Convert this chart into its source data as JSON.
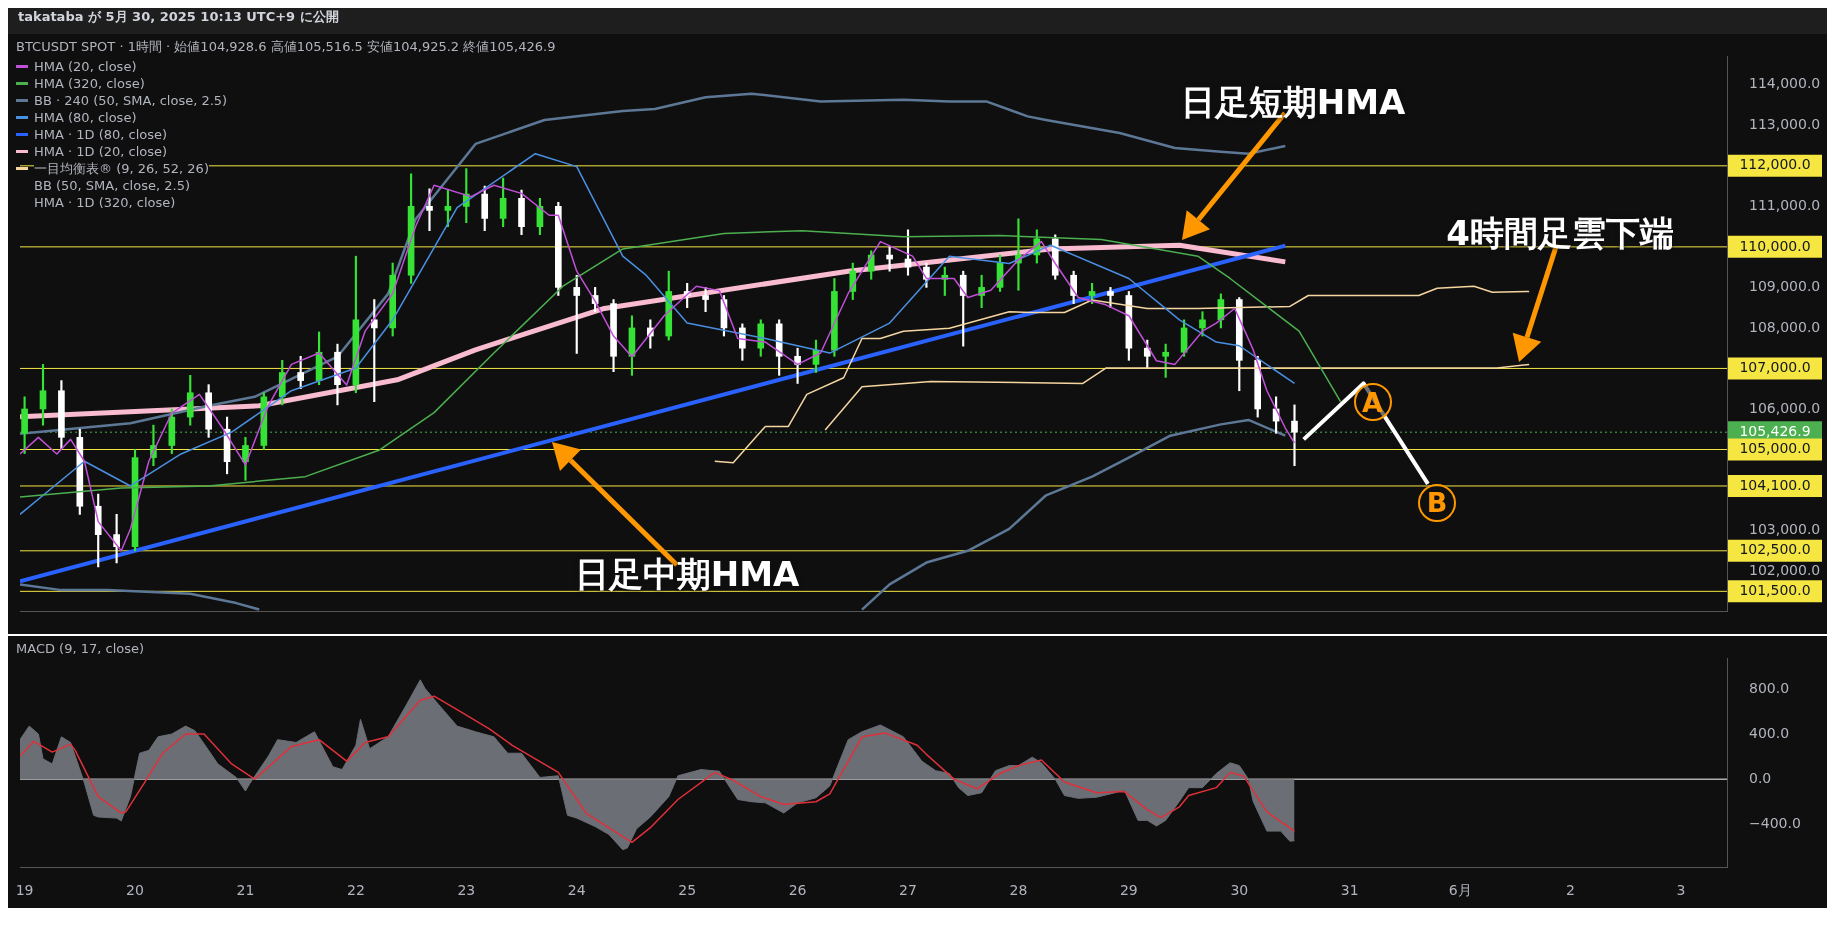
{
  "chart_data": [
    {
      "type": "candlestick",
      "title": "takataba が 5月 30, 2025 10:13 UTC+9 に公開",
      "subtitle": "BTCUSDT SPOT · 1時間 · 始値104,928.6 高値105,516.5 安値104,925.2 終値105,426.9",
      "x": [
        "2025-05-19T00:00",
        "2025-05-19T04:00",
        "2025-05-19T08:00",
        "2025-05-19T12:00",
        "2025-05-19T16:00",
        "2025-05-19T20:00",
        "2025-05-20T00:00",
        "2025-05-20T04:00",
        "2025-05-20T08:00",
        "2025-05-20T12:00",
        "2025-05-20T16:00",
        "2025-05-20T20:00",
        "2025-05-21T00:00",
        "2025-05-21T04:00",
        "2025-05-21T08:00",
        "2025-05-21T12:00",
        "2025-05-21T16:00",
        "2025-05-21T20:00",
        "2025-05-22T00:00",
        "2025-05-22T04:00",
        "2025-05-22T08:00",
        "2025-05-22T12:00",
        "2025-05-22T16:00",
        "2025-05-22T20:00",
        "2025-05-23T00:00",
        "2025-05-23T04:00",
        "2025-05-23T08:00",
        "2025-05-23T12:00",
        "2025-05-23T16:00",
        "2025-05-23T20:00",
        "2025-05-24T00:00",
        "2025-05-24T04:00",
        "2025-05-24T08:00",
        "2025-05-24T12:00",
        "2025-05-24T16:00",
        "2025-05-24T20:00",
        "2025-05-25T00:00",
        "2025-05-25T04:00",
        "2025-05-25T08:00",
        "2025-05-25T12:00",
        "2025-05-25T16:00",
        "2025-05-25T20:00",
        "2025-05-26T00:00",
        "2025-05-26T04:00",
        "2025-05-26T08:00",
        "2025-05-26T12:00",
        "2025-05-26T16:00",
        "2025-05-26T20:00",
        "2025-05-27T00:00",
        "2025-05-27T04:00",
        "2025-05-27T08:00",
        "2025-05-27T12:00",
        "2025-05-27T16:00",
        "2025-05-27T20:00",
        "2025-05-28T00:00",
        "2025-05-28T04:00",
        "2025-05-28T08:00",
        "2025-05-28T12:00",
        "2025-05-28T16:00",
        "2025-05-28T20:00",
        "2025-05-29T00:00",
        "2025-05-29T04:00",
        "2025-05-29T08:00",
        "2025-05-29T12:00",
        "2025-05-29T16:00",
        "2025-05-29T20:00",
        "2025-05-30T00:00",
        "2025-05-30T04:00",
        "2025-05-30T08:00",
        "2025-05-30T12:00"
      ],
      "ohlc": [
        [
          105400,
          106300,
          104900,
          106000
        ],
        [
          106000,
          107100,
          105600,
          106450
        ],
        [
          106450,
          106700,
          105000,
          105300
        ],
        [
          105300,
          105500,
          103400,
          103600
        ],
        [
          103600,
          103900,
          102100,
          102900
        ],
        [
          102900,
          103400,
          102200,
          102600
        ],
        [
          102600,
          105000,
          102500,
          104800
        ],
        [
          104800,
          105600,
          104600,
          105100
        ],
        [
          105100,
          106000,
          104900,
          105800
        ],
        [
          105800,
          106830,
          105600,
          106400
        ],
        [
          106400,
          106600,
          105300,
          105500
        ],
        [
          105500,
          105800,
          104400,
          104700
        ],
        [
          104700,
          105300,
          104240,
          105100
        ],
        [
          105100,
          106400,
          105000,
          106300
        ],
        [
          106300,
          107200,
          106100,
          106900
        ],
        [
          106900,
          107300,
          106500,
          106700
        ],
        [
          106700,
          107900,
          106600,
          107400
        ],
        [
          107400,
          107600,
          106100,
          106600
        ],
        [
          106600,
          109770,
          106400,
          108200
        ],
        [
          108200,
          108700,
          106180,
          108000
        ],
        [
          108000,
          109600,
          107800,
          109300
        ],
        [
          109300,
          111800,
          109100,
          111000
        ],
        [
          111000,
          111430,
          110400,
          110900
        ],
        [
          110900,
          111400,
          110500,
          111000
        ],
        [
          111000,
          111930,
          110600,
          111300
        ],
        [
          111300,
          111500,
          110400,
          110700
        ],
        [
          110700,
          111700,
          110500,
          111200
        ],
        [
          111200,
          111400,
          110300,
          110500
        ],
        [
          110500,
          111200,
          110300,
          111000
        ],
        [
          111000,
          111100,
          108800,
          109000
        ],
        [
          109000,
          109300,
          107370,
          108800
        ],
        [
          108800,
          109000,
          108400,
          108600
        ],
        [
          108600,
          108700,
          106920,
          107300
        ],
        [
          107300,
          108300,
          106830,
          108000
        ],
        [
          108000,
          108200,
          107500,
          107800
        ],
        [
          107800,
          109400,
          107700,
          108900
        ],
        [
          108900,
          109100,
          108500,
          108800
        ],
        [
          108800,
          109000,
          108400,
          108700
        ],
        [
          108700,
          108800,
          107800,
          108000
        ],
        [
          108000,
          108100,
          107200,
          107500
        ],
        [
          107500,
          108200,
          107300,
          108100
        ],
        [
          108100,
          108200,
          106830,
          107300
        ],
        [
          107300,
          107500,
          106630,
          107100
        ],
        [
          107100,
          107700,
          106900,
          107450
        ],
        [
          107450,
          109220,
          107300,
          108900
        ],
        [
          108900,
          109600,
          108700,
          109400
        ],
        [
          109400,
          109900,
          109200,
          109800
        ],
        [
          109800,
          110000,
          109400,
          109700
        ],
        [
          109700,
          110420,
          109300,
          109500
        ],
        [
          109500,
          109600,
          109000,
          109200
        ],
        [
          109200,
          109500,
          108800,
          109300
        ],
        [
          109300,
          109400,
          107550,
          108800
        ],
        [
          108800,
          109300,
          108500,
          109000
        ],
        [
          109000,
          109800,
          108900,
          109600
        ],
        [
          109600,
          110690,
          108930,
          109800
        ],
        [
          109800,
          110420,
          109600,
          110200
        ],
        [
          110200,
          110300,
          109200,
          109300
        ],
        [
          109300,
          109400,
          108600,
          108800
        ],
        [
          108800,
          109100,
          108600,
          108900
        ],
        [
          108900,
          109000,
          108500,
          108800
        ],
        [
          108800,
          108900,
          107200,
          107500
        ],
        [
          107500,
          107700,
          107000,
          107300
        ],
        [
          107300,
          107600,
          106780,
          107400
        ],
        [
          107400,
          108200,
          107300,
          108000
        ],
        [
          108000,
          108400,
          107800,
          108200
        ],
        [
          108200,
          108840,
          108000,
          108700
        ],
        [
          108700,
          108750,
          106450,
          107200
        ],
        [
          107200,
          107300,
          105800,
          106000
        ],
        [
          106000,
          106300,
          105400,
          105700
        ],
        [
          105700,
          106100,
          104600,
          105427
        ]
      ],
      "colors": [
        "#36e236",
        "#36e236",
        "#ffffff",
        "#ffffff",
        "#ffffff",
        "#ffffff",
        "#36e236",
        "#36e236",
        "#36e236",
        "#36e236",
        "#ffffff",
        "#ffffff",
        "#36e236",
        "#36e236",
        "#36e236",
        "#ffffff",
        "#36e236",
        "#ffffff",
        "#36e236",
        "#ffffff",
        "#36e236",
        "#36e236",
        "#ffffff",
        "#36e236",
        "#36e236",
        "#ffffff",
        "#36e236",
        "#ffffff",
        "#36e236",
        "#ffffff",
        "#ffffff",
        "#ffffff",
        "#ffffff",
        "#36e236",
        "#ffffff",
        "#36e236",
        "#ffffff",
        "#ffffff",
        "#ffffff",
        "#ffffff",
        "#36e236",
        "#ffffff",
        "#ffffff",
        "#36e236",
        "#36e236",
        "#36e236",
        "#36e236",
        "#ffffff",
        "#ffffff",
        "#ffffff",
        "#36e236",
        "#ffffff",
        "#36e236",
        "#36e236",
        "#36e236",
        "#36e236",
        "#ffffff",
        "#ffffff",
        "#36e236",
        "#ffffff",
        "#ffffff",
        "#ffffff",
        "#36e236",
        "#36e236",
        "#36e236",
        "#36e236",
        "#ffffff",
        "#ffffff",
        "#ffffff",
        "#ffffff"
      ],
      "series": [
        {
          "type": "line",
          "name": "HMA (20, close)",
          "color": "#c050d8",
          "x": [
            "2025-05-18T23:00",
            "2025-05-19T03:00",
            "2025-05-19T07:00",
            "2025-05-19T10:00",
            "2025-05-19T13:00",
            "2025-05-19T16:00",
            "2025-05-19T21:00",
            "2025-05-19T23:00",
            "2025-05-20T03:00",
            "2025-05-20T08:00",
            "2025-05-20T14:00",
            "2025-05-20T19:00",
            "2025-05-21T00:00",
            "2025-05-21T05:00",
            "2025-05-21T10:00",
            "2025-05-21T16:00",
            "2025-05-21T22:00",
            "2025-05-22T02:00",
            "2025-05-22T08:00",
            "2025-05-22T13:00",
            "2025-05-22T17:00",
            "2025-05-23T01:00",
            "2025-05-23T06:00",
            "2025-05-23T12:00",
            "2025-05-23T18:00",
            "2025-05-23T20:00",
            "2025-05-24T00:00",
            "2025-05-24T04:00",
            "2025-05-24T08:00",
            "2025-05-24T12:00",
            "2025-05-24T19:00",
            "2025-05-25T02:00",
            "2025-05-25T07:00",
            "2025-05-25T11:00",
            "2025-05-25T17:00",
            "2025-05-26T00:00",
            "2025-05-26T05:00",
            "2025-05-26T11:00",
            "2025-05-26T18:00",
            "2025-05-27T01:00",
            "2025-05-27T04:00",
            "2025-05-27T10:00",
            "2025-05-27T13:00",
            "2025-05-27T18:00",
            "2025-05-28T00:00",
            "2025-05-28T05:00",
            "2025-05-28T08:00",
            "2025-05-28T13:00",
            "2025-05-28T19:00",
            "2025-05-29T00:00",
            "2025-05-29T06:00",
            "2025-05-29T10:00",
            "2025-05-29T16:00",
            "2025-05-29T19:00",
            "2025-05-29T23:00",
            "2025-05-30T03:00",
            "2025-05-30T06:00",
            "2025-05-30T10:00",
            "2025-05-30T12:00"
          ],
          "values": [
            104890,
            105300,
            104890,
            105250,
            104710,
            103220,
            102500,
            103040,
            104710,
            105900,
            106360,
            105530,
            104620,
            106090,
            107100,
            107380,
            106590,
            107920,
            108850,
            110510,
            111520,
            111240,
            111520,
            111320,
            110780,
            110780,
            109400,
            108660,
            107800,
            107290,
            108300,
            109030,
            108920,
            107740,
            107650,
            107100,
            107380,
            108850,
            110130,
            109770,
            109220,
            109220,
            108750,
            108930,
            109680,
            110130,
            109590,
            108750,
            108570,
            108300,
            107190,
            107100,
            107920,
            108120,
            108480,
            107470,
            106450,
            105530,
            105160
          ]
        },
        {
          "type": "line",
          "name": "HMA (320, close)",
          "color": "#4caf50",
          "x": [
            "2025-05-18T23:00",
            "2025-05-19T21:00",
            "2025-05-20T16:00",
            "2025-05-21T13:00",
            "2025-05-22T05:00",
            "2025-05-22T17:00",
            "2025-05-23T06:00",
            "2025-05-23T21:00",
            "2025-05-24T10:00",
            "2025-05-25T08:00",
            "2025-05-26T01:00",
            "2025-05-26T23:00",
            "2025-05-27T20:00",
            "2025-05-28T18:00",
            "2025-05-29T15:00",
            "2025-05-29T22:00",
            "2025-05-30T13:00",
            "2025-05-30T22:00"
          ],
          "values": [
            103830,
            104050,
            104100,
            104330,
            104980,
            105910,
            107380,
            109030,
            109950,
            110330,
            110400,
            110250,
            110280,
            110180,
            109770,
            109220,
            107920,
            106180
          ]
        },
        {
          "type": "line",
          "name": "BB · 240 (50, SMA, close, 2.5)",
          "color": "#5d7896",
          "x": [
            "2025-05-18T23:00",
            "2025-05-19T23:00",
            "2025-05-20T16:00",
            "2025-05-21T02:00",
            "2025-05-21T20:00",
            "2025-05-22T07:00",
            "2025-05-22T13:00",
            "2025-05-23T02:00",
            "2025-05-23T17:00",
            "2025-05-24T10:00",
            "2025-05-24T17:00",
            "2025-05-25T04:00",
            "2025-05-25T14:00",
            "2025-05-26T05:00",
            "2025-05-26T23:00",
            "2025-05-27T09:00",
            "2025-05-27T17:00",
            "2025-05-28T02:00",
            "2025-05-28T06:00",
            "2025-05-28T22:00",
            "2025-05-29T10:00",
            "2025-05-29T20:00",
            "2025-05-30T02:00",
            "2025-05-30T10:00"
          ],
          "values": [
            105390,
            105650,
            106080,
            106300,
            107290,
            108840,
            110690,
            112540,
            113130,
            113350,
            113400,
            113690,
            113780,
            113590,
            113630,
            113590,
            113590,
            113220,
            113130,
            112810,
            112440,
            112350,
            112300,
            112490
          ]
        },
        {
          "type": "line",
          "color": "#5d7896",
          "x": [
            "2025-05-18T23:00",
            "2025-05-19T08:00",
            "2025-05-19T18:00",
            "2025-05-20T12:00",
            "2025-05-20T22:00",
            "2025-05-21T03:00",
            "2025-05-24T00:00",
            "2025-05-26T14:00",
            "2025-05-26T20:00",
            "2025-05-27T04:00",
            "2025-05-27T13:00",
            "2025-05-27T22:00",
            "2025-05-28T06:00",
            "2025-05-28T16:00",
            "2025-05-29T00:00",
            "2025-05-29T09:00",
            "2025-05-29T20:00",
            "2025-05-30T02:00",
            "2025-05-30T10:00"
          ],
          "values": [
            101670,
            101530,
            101530,
            101440,
            101210,
            101050,
            null,
            101050,
            101670,
            102210,
            102500,
            103040,
            103870,
            104330,
            104800,
            105340,
            105620,
            105730,
            105340
          ]
        },
        {
          "type": "line",
          "name": "HMA (80, close)",
          "color": "#4a90e2",
          "x": [
            "2025-05-18T23:00",
            "2025-05-19T13:00",
            "2025-05-19T23:00",
            "2025-05-20T10:00",
            "2025-05-20T21:00",
            "2025-05-21T10:00",
            "2025-05-22T00:00",
            "2025-05-22T08:00",
            "2025-05-22T22:00",
            "2025-05-23T15:00",
            "2025-05-24T00:00",
            "2025-05-24T10:00",
            "2025-05-24T15:00",
            "2025-05-25T00:00",
            "2025-05-25T17:00",
            "2025-05-26T07:00",
            "2025-05-26T20:00",
            "2025-05-27T09:00",
            "2025-05-27T22:00",
            "2025-05-28T07:00",
            "2025-05-29T00:00",
            "2025-05-29T11:00",
            "2025-05-29T19:00",
            "2025-05-30T00:00",
            "2025-05-30T12:00"
          ],
          "values": [
            103400,
            104710,
            104100,
            104890,
            105430,
            106450,
            107010,
            108200,
            110970,
            112300,
            111980,
            109770,
            109310,
            108120,
            107740,
            107380,
            108120,
            109770,
            109590,
            110040,
            109220,
            108200,
            107650,
            107560,
            106630
          ]
        },
        {
          "type": "line",
          "name": "HMA · 1D (80, close)",
          "color": "#2962ff",
          "x": [
            "2025-05-18T23:00",
            "2025-05-30T10:00"
          ],
          "values": [
            101750,
            110030
          ]
        },
        {
          "type": "line",
          "name": "HMA · 1D (20, close)",
          "color": "#f8bbd0",
          "x": [
            "2025-05-18T23:00",
            "2025-05-21T03:00",
            "2025-05-22T09:00",
            "2025-05-23T02:00",
            "2025-05-24T06:00",
            "2025-05-26T11:00",
            "2025-05-28T07:00",
            "2025-05-29T11:00",
            "2025-05-30T10:00"
          ],
          "values": [
            105810,
            106080,
            106720,
            107460,
            108480,
            109400,
            109950,
            110040,
            109630
          ]
        },
        {
          "type": "line",
          "name": "一目均衡表® (9, 26, 52, 26)",
          "color": "#f5d5a0",
          "x": [
            "2025-05-25T06:00",
            "2025-05-25T10:00",
            "2025-05-25T17:00",
            "2025-05-25T22:00",
            "2025-05-26T02:00",
            "2025-05-26T10:00",
            "2025-05-26T14:00",
            "2025-05-26T18:00",
            "2025-05-26T23:00",
            "2025-05-27T09:00",
            "2025-05-27T22:00",
            "2025-05-28T03:00",
            "2025-05-28T10:00",
            "2025-05-28T16:00",
            "2025-05-29T04:00",
            "2025-05-29T15:00",
            "2025-05-30T11:00",
            "2025-05-30T15:00",
            "2025-05-31T15:00",
            "2025-05-31T19:00",
            "2025-06-01T03:00",
            "2025-06-01T07:00",
            "2025-06-01T15:00"
          ],
          "values": [
            104710,
            104670,
            105570,
            105570,
            106360,
            106770,
            107740,
            107740,
            107920,
            107990,
            108400,
            108380,
            108380,
            108690,
            108480,
            108480,
            108530,
            108800,
            108800,
            108980,
            109030,
            108880,
            108900
          ]
        },
        {
          "type": "line",
          "color": "#f5d5a0",
          "x": [
            "2025-05-26T06:00",
            "2025-05-26T14:00",
            "2025-05-27T05:00",
            "2025-05-28T14:00",
            "2025-05-28T19:00",
            "2025-06-01T08:00",
            "2025-06-01T15:00"
          ],
          "values": [
            105480,
            106550,
            106680,
            106630,
            107010,
            107010,
            107100
          ]
        },
        {
          "type": "line",
          "color": "#ffffff",
          "x": [
            "2025-05-30T14:00",
            "2025-05-31T03:00",
            "2025-05-31T17:00"
          ],
          "values": [
            105250,
            106630,
            104150
          ]
        }
      ],
      "xlim": [
        "2025-05-18T23:00",
        "2025-06-03T10:00"
      ],
      "ylim": [
        101000,
        114700
      ],
      "yticks": [
        {
          "value": 102000,
          "label": "102,000.0"
        },
        {
          "value": 103000,
          "label": "103,000.0"
        },
        {
          "value": 106000,
          "label": "106,000.0"
        },
        {
          "value": 108000,
          "label": "108,000.0"
        },
        {
          "value": 109000,
          "label": "109,000.0"
        },
        {
          "value": 111000,
          "label": "111,000.0"
        },
        {
          "value": 113000,
          "label": "113,000.0"
        },
        {
          "value": 114000,
          "label": "114,000.0"
        }
      ],
      "tick_labels": "y",
      "marker": "none",
      "legend": "top left",
      "ref_lines": [
        {
          "axis": "y",
          "value": 112000,
          "label": "112,000.0",
          "color": "#f5e642"
        },
        {
          "axis": "y",
          "value": 110000,
          "label": "110,000.0",
          "color": "#f5e642"
        },
        {
          "axis": "y",
          "value": 107000,
          "label": "107,000.0",
          "color": "#f5e642"
        },
        {
          "axis": "y",
          "value": 105426.9,
          "label": "105,426.9",
          "color": "#4caf50",
          "line_style": "dotted"
        },
        {
          "axis": "y",
          "value": 105000,
          "label": "105,000.0",
          "color": "#f5e642"
        },
        {
          "axis": "y",
          "value": 104100,
          "label": "104,100.0",
          "color": "#f5e642"
        },
        {
          "axis": "y",
          "value": 102500,
          "label": "102,500.0",
          "color": "#f5e642"
        },
        {
          "axis": "y",
          "value": 101500,
          "label": "101,500.0",
          "color": "#f5e642"
        }
      ],
      "annotations": [
        "日足短期HMA",
        "日足中期HMA",
        "4時間足雲下端",
        {
          "text": "A",
          "x": "2025-05-31T03:00",
          "y": 106630
        },
        {
          "text": "B",
          "x": "2025-05-31T17:00",
          "y": 104150
        },
        "BB (50, SMA, close, 2.5)",
        "HMA · 1D (320, close)"
      ]
    },
    {
      "type": "area",
      "title": "MACD (9, 17, close)",
      "series": [
        {
          "type": "area",
          "color": "#6b6e75",
          "x": [
            "2025-05-18T23:00",
            "2025-05-19T01:00",
            "2025-05-19T03:00",
            "2025-05-19T04:00",
            "2025-05-19T06:00",
            "2025-05-19T08:00",
            "2025-05-19T10:00",
            "2025-05-19T11:00",
            "2025-05-19T13:00",
            "2025-05-19T15:00",
            "2025-05-19T16:00",
            "2025-05-19T20:00",
            "2025-05-19T21:00",
            "2025-05-19T23:00",
            "2025-05-20T01:00",
            "2025-05-20T03:00",
            "2025-05-20T05:00",
            "2025-05-20T08:00",
            "2025-05-20T11:00",
            "2025-05-20T13:00",
            "2025-05-20T16:00",
            "2025-05-20T18:00",
            "2025-05-20T22:00",
            "2025-05-21T00:00",
            "2025-05-21T01:00",
            "2025-05-21T05:00",
            "2025-05-21T07:00",
            "2025-05-21T11:00",
            "2025-05-21T15:00",
            "2025-05-21T19:00",
            "2025-05-21T21:00",
            "2025-05-22T00:00",
            "2025-05-22T01:00",
            "2025-05-22T03:00",
            "2025-05-22T07:00",
            "2025-05-22T11:00",
            "2025-05-22T14:00",
            "2025-05-22T15:00",
            "2025-05-22T18:00",
            "2025-05-22T22:00",
            "2025-05-23T02:00",
            "2025-05-23T06:00",
            "2025-05-23T09:00",
            "2025-05-23T12:00",
            "2025-05-23T16:00",
            "2025-05-23T20:00",
            "2025-05-23T22:00",
            "2025-05-24T00:00",
            "2025-05-24T04:00",
            "2025-05-24T07:00",
            "2025-05-24T10:00",
            "2025-05-24T11:00",
            "2025-05-24T13:00",
            "2025-05-24T16:00",
            "2025-05-24T20:00",
            "2025-05-24T22:00",
            "2025-05-25T03:00",
            "2025-05-25T07:00",
            "2025-05-25T11:00",
            "2025-05-25T14:00",
            "2025-05-25T17:00",
            "2025-05-25T21:00",
            "2025-05-26T00:00",
            "2025-05-26T04:00",
            "2025-05-26T07:00",
            "2025-05-26T11:00",
            "2025-05-26T14:00",
            "2025-05-26T18:00",
            "2025-05-26T23:00",
            "2025-05-27T03:00",
            "2025-05-27T06:00",
            "2025-05-27T09:00",
            "2025-05-27T11:00",
            "2025-05-27T13:00",
            "2025-05-27T16:00",
            "2025-05-27T19:00",
            "2025-05-27T22:00",
            "2025-05-28T00:00",
            "2025-05-28T03:00",
            "2025-05-28T05:00",
            "2025-05-28T08:00",
            "2025-05-28T10:00",
            "2025-05-28T13:00",
            "2025-05-28T17:00",
            "2025-05-28T21:00",
            "2025-05-28T23:00",
            "2025-05-29T02:00",
            "2025-05-29T04:00",
            "2025-05-29T06:00",
            "2025-05-29T08:00",
            "2025-05-29T11:00",
            "2025-05-29T13:00",
            "2025-05-29T16:00",
            "2025-05-29T19:00",
            "2025-05-29T22:00",
            "2025-05-30T00:00",
            "2025-05-30T02:00",
            "2025-05-30T03:00",
            "2025-05-30T06:00",
            "2025-05-30T09:00",
            "2025-05-30T11:00",
            "2025-05-30T12:00"
          ],
          "values": [
            350,
            470,
            400,
            180,
            135,
            375,
            325,
            205,
            -35,
            -320,
            -335,
            -345,
            -370,
            -155,
            230,
            255,
            375,
            400,
            470,
            430,
            255,
            135,
            15,
            -105,
            -35,
            205,
            350,
            325,
            420,
            110,
            85,
            300,
            530,
            270,
            375,
            660,
            880,
            805,
            660,
            470,
            420,
            375,
            230,
            230,
            15,
            30,
            -320,
            -345,
            -420,
            -490,
            -625,
            -610,
            -440,
            -335,
            -155,
            30,
            85,
            70,
            -180,
            -200,
            -210,
            -300,
            -210,
            -165,
            -60,
            350,
            420,
            480,
            375,
            160,
            75,
            50,
            -75,
            -145,
            -120,
            75,
            120,
            120,
            195,
            145,
            0,
            -145,
            -170,
            -160,
            -120,
            -95,
            -365,
            -365,
            -415,
            -365,
            -195,
            -75,
            -75,
            50,
            145,
            120,
            0,
            -195,
            -460,
            -460,
            -550,
            -545
          ]
        },
        {
          "type": "line",
          "color": "#e0303a",
          "x": [
            "2025-05-18T23:00",
            "2025-05-19T02:00",
            "2025-05-19T06:00",
            "2025-05-19T10:00",
            "2025-05-19T11:00",
            "2025-05-19T16:00",
            "2025-05-19T21:00",
            "2025-05-19T22:00",
            "2025-05-20T02:00",
            "2025-05-20T06:00",
            "2025-05-20T11:00",
            "2025-05-20T15:00",
            "2025-05-20T21:00",
            "2025-05-21T02:00",
            "2025-05-21T10:00",
            "2025-05-21T16:00",
            "2025-05-21T22:00",
            "2025-05-22T02:00",
            "2025-05-22T07:00",
            "2025-05-22T14:00",
            "2025-05-22T17:00",
            "2025-05-22T21:00",
            "2025-05-23T05:00",
            "2025-05-23T10:00",
            "2025-05-23T15:00",
            "2025-05-23T20:00",
            "2025-05-24T02:00",
            "2025-05-24T12:00",
            "2025-05-24T16:00",
            "2025-05-24T22:00",
            "2025-05-25T06:00",
            "2025-05-25T10:00",
            "2025-05-25T16:00",
            "2025-05-25T21:00",
            "2025-05-26T04:00",
            "2025-05-26T07:00",
            "2025-05-26T14:00",
            "2025-05-26T19:00",
            "2025-05-27T02:00",
            "2025-05-27T04:00",
            "2025-05-27T10:00",
            "2025-05-27T15:00",
            "2025-05-27T20:00",
            "2025-05-28T00:00",
            "2025-05-28T05:00",
            "2025-05-28T10:00",
            "2025-05-28T17:00",
            "2025-05-28T23:00",
            "2025-05-29T04:00",
            "2025-05-29T07:00",
            "2025-05-29T11:00",
            "2025-05-29T13:00",
            "2025-05-29T19:00",
            "2025-05-29T22:00",
            "2025-05-30T01:00",
            "2025-05-30T06:00",
            "2025-05-30T12:00"
          ],
          "values": [
            205,
            335,
            240,
            310,
            255,
            -155,
            -300,
            -290,
            -35,
            230,
            400,
            400,
            135,
            0,
            290,
            350,
            160,
            325,
            375,
            700,
            735,
            640,
            445,
            300,
            180,
            60,
            -300,
            -560,
            -430,
            -180,
            60,
            -10,
            -155,
            -225,
            -200,
            -130,
            375,
            410,
            300,
            220,
            0,
            -85,
            50,
            120,
            170,
            -25,
            -120,
            -110,
            -270,
            -340,
            -245,
            -145,
            -75,
            60,
            25,
            -290,
            -460
          ]
        }
      ],
      "xlim": [
        "2025-05-18T23:00",
        "2025-06-03T10:00"
      ],
      "xticks": [
        {
          "value": "2025-05-19",
          "label": "19"
        },
        {
          "value": "2025-05-20",
          "label": "20"
        },
        {
          "value": "2025-05-21",
          "label": "21"
        },
        {
          "value": "2025-05-22",
          "label": "22"
        },
        {
          "value": "2025-05-23",
          "label": "23"
        },
        {
          "value": "2025-05-24",
          "label": "24"
        },
        {
          "value": "2025-05-25",
          "label": "25"
        },
        {
          "value": "2025-05-26",
          "label": "26"
        },
        {
          "value": "2025-05-27",
          "label": "27"
        },
        {
          "value": "2025-05-28",
          "label": "28"
        },
        {
          "value": "2025-05-29",
          "label": "29"
        },
        {
          "value": "2025-05-30",
          "label": "30"
        },
        {
          "value": "2025-05-31",
          "label": "31"
        },
        {
          "value": "2025-06-01",
          "label": "6月"
        },
        {
          "value": "2025-06-02",
          "label": "2"
        },
        {
          "value": "2025-06-03",
          "label": "3"
        }
      ],
      "ylim": [
        -780,
        1070
      ],
      "yticks": [
        {
          "value": -400,
          "label": "−400.0"
        },
        {
          "value": 0,
          "label": "0.0"
        },
        {
          "value": 400,
          "label": "400.0"
        },
        {
          "value": 800,
          "label": "800.0"
        }
      ],
      "marker": "none",
      "ref_lines": [
        {
          "axis": "y",
          "value": 0,
          "color": "#ffffff"
        }
      ]
    }
  ]
}
